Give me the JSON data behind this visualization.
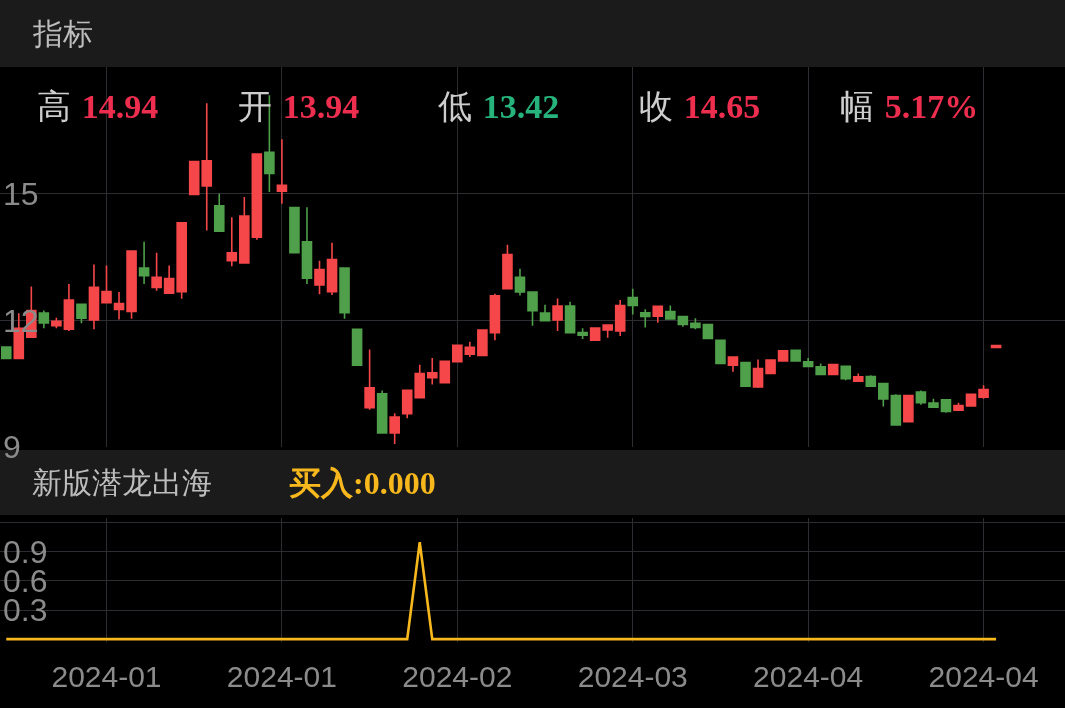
{
  "chart_data": [
    {
      "type": "candlestick",
      "title": "指标",
      "annotations": [
        "高 14.94",
        "开 13.94",
        "低 13.42",
        "收 14.65",
        "幅 5.17%"
      ],
      "categories": [
        null,
        null,
        null,
        null,
        null,
        null,
        null,
        null,
        "2024-01",
        null,
        null,
        null,
        null,
        null,
        null,
        null,
        null,
        null,
        null,
        null,
        null,
        null,
        "2024-01",
        null,
        null,
        null,
        null,
        null,
        null,
        null,
        null,
        null,
        null,
        null,
        null,
        null,
        "2024-02",
        null,
        null,
        null,
        null,
        null,
        null,
        null,
        null,
        null,
        null,
        null,
        null,
        null,
        "2024-03",
        null,
        null,
        null,
        null,
        null,
        null,
        null,
        null,
        null,
        null,
        null,
        null,
        null,
        "2024-04",
        null,
        null,
        null,
        null,
        null,
        null,
        null,
        null,
        null,
        null,
        null,
        null,
        null,
        "2024-04",
        null
      ],
      "ohlc": [
        [
          11.37,
          11.37,
          11.1,
          11.1
        ],
        [
          11.1,
          12.17,
          11.1,
          11.81
        ],
        [
          11.6,
          12.8,
          11.6,
          12.23
        ],
        [
          12.17,
          12.23,
          11.81,
          11.94
        ],
        [
          11.87,
          12.06,
          11.81,
          11.98
        ],
        [
          11.79,
          12.86,
          11.75,
          12.48
        ],
        [
          12.38,
          12.38,
          11.93,
          12.05
        ],
        [
          12.01,
          13.32,
          11.79,
          12.78
        ],
        [
          12.42,
          13.3,
          12.42,
          12.68
        ],
        [
          12.26,
          12.67,
          12.02,
          12.4
        ],
        [
          12.21,
          13.64,
          12.04,
          13.64
        ],
        [
          13.24,
          13.86,
          12.86,
          13.06
        ],
        [
          12.78,
          13.6,
          12.7,
          13.02
        ],
        [
          12.64,
          13.3,
          12.64,
          12.99
        ],
        [
          12.68,
          14.31,
          12.51,
          14.31
        ],
        [
          14.98,
          15.76,
          14.98,
          15.76
        ],
        [
          15.18,
          17.14,
          14.13,
          15.78
        ],
        [
          14.71,
          15.0,
          14.11,
          14.11
        ],
        [
          13.41,
          14.44,
          13.28,
          13.6
        ],
        [
          13.36,
          14.92,
          13.36,
          14.47
        ],
        [
          13.97,
          15.94,
          13.91,
          15.94
        ],
        [
          15.98,
          17.33,
          15.04,
          15.48
        ],
        [
          15.06,
          16.29,
          14.76,
          15.2
        ],
        [
          14.67,
          14.67,
          13.6,
          13.6
        ],
        [
          13.86,
          14.68,
          12.86,
          13.0
        ],
        [
          12.84,
          13.41,
          12.62,
          13.2
        ],
        [
          12.68,
          13.84,
          12.6,
          13.44
        ],
        [
          13.24,
          13.24,
          12.04,
          12.18
        ],
        [
          11.79,
          11.79,
          10.94,
          10.94
        ],
        [
          9.93,
          11.31,
          9.88,
          10.4
        ],
        [
          10.26,
          10.34,
          9.33,
          9.33
        ],
        [
          9.33,
          9.8,
          9.07,
          9.71
        ],
        [
          9.79,
          10.34,
          9.68,
          10.34
        ],
        [
          10.17,
          10.95,
          10.17,
          10.74
        ],
        [
          10.64,
          11.11,
          10.48,
          10.76
        ],
        [
          10.52,
          11.03,
          10.52,
          11.03
        ],
        [
          11.02,
          11.41,
          11.02,
          11.41
        ],
        [
          11.2,
          11.49,
          11.13,
          11.36
        ],
        [
          11.17,
          11.77,
          11.15,
          11.77
        ],
        [
          11.71,
          12.63,
          11.53,
          12.58
        ],
        [
          12.75,
          13.79,
          12.75,
          13.56
        ],
        [
          13.02,
          13.22,
          12.59,
          12.67
        ],
        [
          12.67,
          12.67,
          11.87,
          12.23
        ],
        [
          12.17,
          12.37,
          11.99,
          11.99
        ],
        [
          12.01,
          12.52,
          11.75,
          12.34
        ],
        [
          12.34,
          12.44,
          11.71,
          11.71
        ],
        [
          11.71,
          11.81,
          11.56,
          11.65
        ],
        [
          11.53,
          11.82,
          11.53,
          11.82
        ],
        [
          11.77,
          11.89,
          11.59,
          11.89
        ],
        [
          11.75,
          12.48,
          11.63,
          12.35
        ],
        [
          12.54,
          12.75,
          12.14,
          12.35
        ],
        [
          12.18,
          12.26,
          11.83,
          12.09
        ],
        [
          12.1,
          12.34,
          11.94,
          12.33
        ],
        [
          12.21,
          12.35,
          12.03,
          12.03
        ],
        [
          12.09,
          12.09,
          11.85,
          11.9
        ],
        [
          11.93,
          12.05,
          11.79,
          11.83
        ],
        [
          11.9,
          11.9,
          11.57,
          11.57
        ],
        [
          11.53,
          11.53,
          10.98,
          10.98
        ],
        [
          10.94,
          11.13,
          10.78,
          11.13
        ],
        [
          11.0,
          11.0,
          10.44,
          10.44
        ],
        [
          10.42,
          11.07,
          10.4,
          10.86
        ],
        [
          10.74,
          11.06,
          10.74,
          11.06
        ],
        [
          11.04,
          11.28,
          11.04,
          11.28
        ],
        [
          11.29,
          11.29,
          11.02,
          11.04
        ],
        [
          11.02,
          11.11,
          10.9,
          10.91
        ],
        [
          10.9,
          10.98,
          10.72,
          10.72
        ],
        [
          10.72,
          10.95,
          10.72,
          10.95
        ],
        [
          10.91,
          10.91,
          10.58,
          10.62
        ],
        [
          10.56,
          10.74,
          10.56,
          10.66
        ],
        [
          10.67,
          10.7,
          10.44,
          10.44
        ],
        [
          10.5,
          10.52,
          9.96,
          10.14
        ],
        [
          10.22,
          10.25,
          9.52,
          9.52
        ],
        [
          9.6,
          10.22,
          9.6,
          10.22
        ],
        [
          10.3,
          10.34,
          10.0,
          10.05
        ],
        [
          10.04,
          10.14,
          9.94,
          9.94
        ],
        [
          10.12,
          10.12,
          9.81,
          9.84
        ],
        [
          9.87,
          10.05,
          9.87,
          9.98
        ],
        [
          9.97,
          10.25,
          9.97,
          10.25
        ],
        [
          10.18,
          10.46,
          10.14,
          10.36
        ],
        [
          11.36,
          11.4,
          11.36,
          11.4
        ]
      ],
      "colors": [
        "#4f9f4b",
        "#f5474a",
        "#f5474a",
        "#4f9f4b",
        "#f5474a",
        "#f5474a",
        "#4f9f4b",
        "#f5474a",
        "#f5474a",
        "#f5474a",
        "#f5474a",
        "#4f9f4b",
        "#f5474a",
        "#f5474a",
        "#f5474a",
        "#f5474a",
        "#f5474a",
        "#4f9f4b",
        "#f5474a",
        "#f5474a",
        "#f5474a",
        "#4f9f4b",
        "#f5474a",
        "#4f9f4b",
        "#4f9f4b",
        "#f5474a",
        "#f5474a",
        "#4f9f4b",
        "#4f9f4b",
        "#f5474a",
        "#4f9f4b",
        "#f5474a",
        "#f5474a",
        "#f5474a",
        "#f5474a",
        "#f5474a",
        "#f5474a",
        "#f5474a",
        "#f5474a",
        "#f5474a",
        "#f5474a",
        "#4f9f4b",
        "#4f9f4b",
        "#4f9f4b",
        "#f5474a",
        "#4f9f4b",
        "#4f9f4b",
        "#f5474a",
        "#f5474a",
        "#f5474a",
        "#4f9f4b",
        "#4f9f4b",
        "#f5474a",
        "#4f9f4b",
        "#4f9f4b",
        "#4f9f4b",
        "#4f9f4b",
        "#4f9f4b",
        "#f5474a",
        "#4f9f4b",
        "#f5474a",
        "#f5474a",
        "#f5474a",
        "#4f9f4b",
        "#4f9f4b",
        "#4f9f4b",
        "#f5474a",
        "#4f9f4b",
        "#f5474a",
        "#4f9f4b",
        "#4f9f4b",
        "#4f9f4b",
        "#f5474a",
        "#4f9f4b",
        "#4f9f4b",
        "#4f9f4b",
        "#f5474a",
        "#f5474a",
        "#f5474a",
        "#f5474a"
      ],
      "ylim": [
        9,
        18
      ],
      "yticks": [
        9,
        12,
        15
      ],
      "grid": true,
      "tick_labels": "y"
    },
    {
      "type": "line",
      "title": "新版潜龙出海",
      "annotations": [
        "买入:0.000"
      ],
      "categories": [
        null,
        null,
        null,
        null,
        null,
        null,
        null,
        null,
        "2024-01",
        null,
        null,
        null,
        null,
        null,
        null,
        null,
        null,
        null,
        null,
        null,
        null,
        null,
        "2024-01",
        null,
        null,
        null,
        null,
        null,
        null,
        null,
        null,
        null,
        null,
        null,
        null,
        null,
        "2024-02",
        null,
        null,
        null,
        null,
        null,
        null,
        null,
        null,
        null,
        null,
        null,
        null,
        null,
        "2024-03",
        null,
        null,
        null,
        null,
        null,
        null,
        null,
        null,
        null,
        null,
        null,
        null,
        null,
        "2024-04",
        null,
        null,
        null,
        null,
        null,
        null,
        null,
        null,
        null,
        null,
        null,
        null,
        null,
        "2024-04",
        null
      ],
      "series": [
        {
          "color": "#f6b81d",
          "values": [
            0,
            0,
            0,
            0,
            0,
            0,
            0,
            0,
            0,
            0,
            0,
            0,
            0,
            0,
            0,
            0,
            0,
            0,
            0,
            0,
            0,
            0,
            0,
            0,
            0,
            0,
            0,
            0,
            0,
            0,
            0,
            0,
            0,
            1,
            0,
            0,
            0,
            0,
            0,
            0,
            0,
            0,
            0,
            0,
            0,
            0,
            0,
            0,
            0,
            0,
            0,
            0,
            0,
            0,
            0,
            0,
            0,
            0,
            0,
            0,
            0,
            0,
            0,
            0,
            0,
            0,
            0,
            0,
            0,
            0,
            0,
            0,
            0,
            0,
            0,
            0,
            0,
            0,
            0,
            0
          ]
        }
      ],
      "ylim": [
        -0.03,
        1.25
      ],
      "yticks": [
        0.3,
        0.6,
        0.9,
        {
          "value": 1.2,
          "label": null
        }
      ],
      "grid": true
    }
  ]
}
